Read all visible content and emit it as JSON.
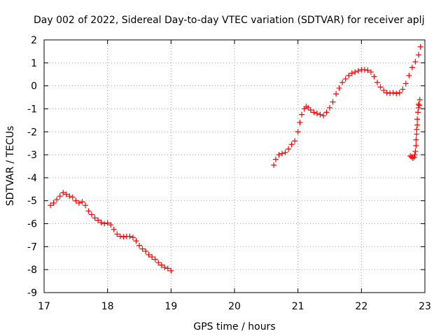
{
  "chart_data": {
    "type": "scatter",
    "title": "Day 002 of 2022, Sidereal Day-to-day VTEC variation (SDTVAR) for receiver aplj",
    "xlabel": "GPS time / hours",
    "ylabel": "SDTVAR / TECUs",
    "xlim": [
      17,
      23
    ],
    "ylim": [
      -9,
      2
    ],
    "xticks": [
      17,
      18,
      19,
      20,
      21,
      22,
      23
    ],
    "yticks": [
      -9,
      -8,
      -7,
      -6,
      -5,
      -4,
      -3,
      -2,
      -1,
      0,
      1,
      2
    ],
    "grid": true,
    "marker": "+",
    "color": "#ff0000",
    "series": [
      {
        "name": "segment-1",
        "x": [
          17.1,
          17.15,
          17.2,
          17.25,
          17.3,
          17.35,
          17.4,
          17.45,
          17.5,
          17.55,
          17.6,
          17.65,
          17.7,
          17.75,
          17.8,
          17.85,
          17.9,
          17.95,
          18.0,
          18.05,
          18.1,
          18.15,
          18.2,
          18.25,
          18.3,
          18.35,
          18.4,
          18.45,
          18.5,
          18.55,
          18.6,
          18.65,
          18.7,
          18.75,
          18.8,
          18.85,
          18.9,
          18.95,
          19.0
        ],
        "y": [
          -5.2,
          -5.1,
          -4.95,
          -4.8,
          -4.65,
          -4.72,
          -4.8,
          -4.85,
          -5.0,
          -5.1,
          -5.05,
          -5.2,
          -5.45,
          -5.6,
          -5.75,
          -5.85,
          -5.95,
          -6.0,
          -5.97,
          -6.05,
          -6.25,
          -6.45,
          -6.55,
          -6.57,
          -6.55,
          -6.55,
          -6.6,
          -6.75,
          -6.95,
          -7.1,
          -7.2,
          -7.35,
          -7.45,
          -7.55,
          -7.7,
          -7.8,
          -7.9,
          -7.95,
          -8.05
        ]
      },
      {
        "name": "segment-2",
        "x": [
          20.62,
          20.65,
          20.7,
          20.75,
          20.8,
          20.85,
          20.9,
          20.95,
          21.0,
          21.03,
          21.06,
          21.1,
          21.13,
          21.16,
          21.2,
          21.25,
          21.3,
          21.35,
          21.4,
          21.45,
          21.5,
          21.55,
          21.6,
          21.65,
          21.7,
          21.75,
          21.8,
          21.85,
          21.9,
          21.95,
          22.0,
          22.05,
          22.1,
          22.15,
          22.2,
          22.25,
          22.3,
          22.35,
          22.4,
          22.45,
          22.5,
          22.55,
          22.6,
          22.65,
          22.7,
          22.75,
          22.8,
          22.85,
          22.9,
          22.93
        ],
        "y": [
          -3.45,
          -3.2,
          -3.0,
          -2.95,
          -2.9,
          -2.75,
          -2.55,
          -2.4,
          -2.0,
          -1.6,
          -1.25,
          -1.0,
          -0.9,
          -0.95,
          -1.05,
          -1.15,
          -1.2,
          -1.25,
          -1.3,
          -1.15,
          -0.95,
          -0.7,
          -0.35,
          -0.1,
          0.15,
          0.3,
          0.45,
          0.55,
          0.6,
          0.65,
          0.7,
          0.7,
          0.68,
          0.6,
          0.4,
          0.15,
          -0.05,
          -0.2,
          -0.3,
          -0.32,
          -0.3,
          -0.33,
          -0.3,
          -0.15,
          0.1,
          0.45,
          0.8,
          1.05,
          1.35,
          1.7
        ]
      },
      {
        "name": "segment-3",
        "x": [
          22.77,
          22.79,
          22.81,
          22.83,
          22.84,
          22.85,
          22.86,
          22.86,
          22.87,
          22.87,
          22.88,
          22.88,
          22.89,
          22.9,
          22.9,
          22.91,
          22.92
        ],
        "y": [
          -3.05,
          -3.1,
          -3.15,
          -3.1,
          -3.0,
          -2.85,
          -2.6,
          -2.35,
          -2.1,
          -1.9,
          -1.7,
          -1.45,
          -1.15,
          -0.95,
          -0.8,
          -0.85,
          -0.6
        ]
      }
    ]
  }
}
